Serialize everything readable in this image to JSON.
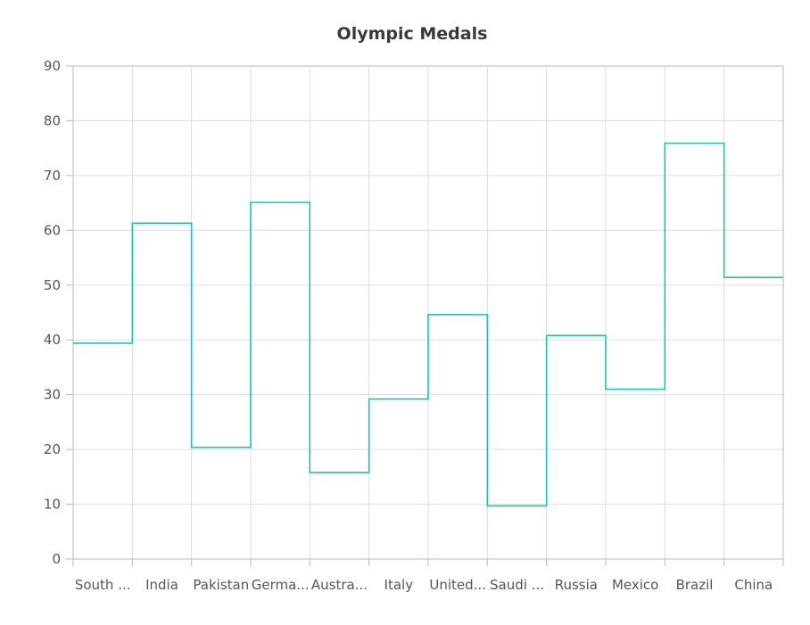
{
  "chart_data": {
    "type": "line",
    "subtype": "step",
    "title": "Olympic Medals",
    "xlabel": "",
    "ylabel": "",
    "categories": [
      "South ...",
      "India",
      "Pakistan",
      "Germa...",
      "Austra...",
      "Italy",
      "United...",
      "Saudi ...",
      "Russia",
      "Mexico",
      "Brazil",
      "China"
    ],
    "series": [
      {
        "color": "#1fc0b3",
        "values": [
          39.4,
          61.3,
          20.4,
          65.1,
          15.8,
          29.2,
          44.6,
          9.7,
          40.8,
          31.0,
          75.9,
          51.4
        ]
      }
    ],
    "ylim": [
      0,
      90
    ],
    "yticks": [
      0,
      10,
      20,
      30,
      40,
      50,
      60,
      70,
      80,
      90
    ],
    "grid": true,
    "legend": "none"
  }
}
